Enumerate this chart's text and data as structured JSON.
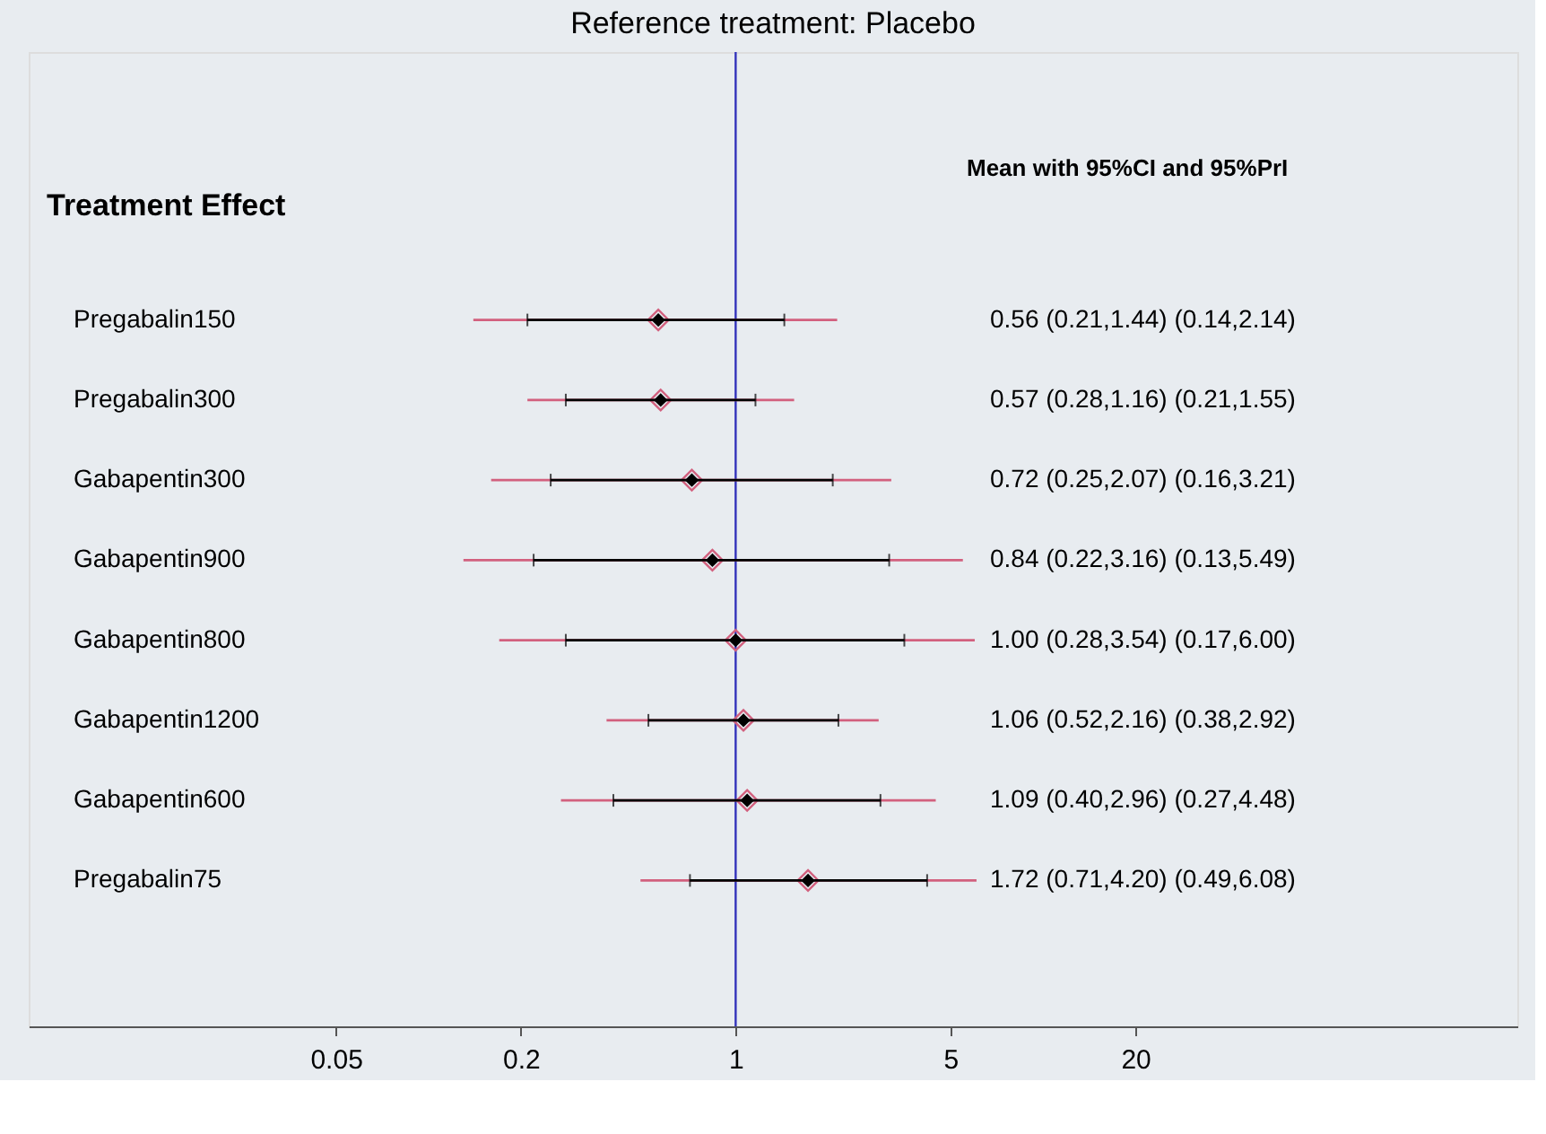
{
  "chart_data": {
    "type": "scatter",
    "orientation": "horizontal",
    "title": "Reference treatment: Placebo",
    "ylabel": "Treatment Effect",
    "annotations": [
      "Mean with 95%CI and 95%PrI",
      "0.56 (0.21,1.44)  (0.14,2.14)",
      "0.57 (0.28,1.16)  (0.21,1.55)",
      "0.72 (0.25,2.07)  (0.16,3.21)",
      "0.84 (0.22,3.16)  (0.13,5.49)",
      "1.00 (0.28,3.54)  (0.17,6.00)",
      "1.06 (0.52,2.16)  (0.38,2.92)",
      "1.09 (0.40,2.96)  (0.27,4.48)",
      "1.72 (0.71,4.20)  (0.49,6.08)"
    ],
    "categories": [
      "Pregabalin150",
      "Pregabalin300",
      "Gabapentin300",
      "Gabapentin900",
      "Gabapentin800",
      "Gabapentin1200",
      "Gabapentin600",
      "Pregabalin75"
    ],
    "series": [
      {
        "color": "#d2607e",
        "marker": "diamond",
        "values": [
          0.56,
          0.57,
          0.72,
          0.84,
          1.0,
          1.06,
          1.09,
          1.72
        ],
        "errors": [
          [
            0.14,
            2.14
          ],
          [
            0.21,
            1.55
          ],
          [
            0.16,
            3.21
          ],
          [
            0.13,
            5.49
          ],
          [
            0.17,
            6.0
          ],
          [
            0.38,
            2.92
          ],
          [
            0.27,
            4.48
          ],
          [
            0.49,
            6.08
          ]
        ]
      },
      {
        "color": "#000000",
        "marker": "diamond",
        "values": [
          0.56,
          0.57,
          0.72,
          0.84,
          1.0,
          1.06,
          1.09,
          1.72
        ],
        "errors": [
          [
            0.21,
            1.44
          ],
          [
            0.28,
            1.16
          ],
          [
            0.25,
            2.07
          ],
          [
            0.22,
            3.16
          ],
          [
            0.28,
            3.54
          ],
          [
            0.52,
            2.16
          ],
          [
            0.4,
            2.96
          ],
          [
            0.71,
            4.2
          ]
        ]
      }
    ],
    "xlim": [
      0.005,
      350
    ],
    "xticks": [
      0.05,
      0.2,
      1,
      5,
      20
    ],
    "log": "x",
    "grid": false,
    "ref_lines": [
      {
        "axis": "x",
        "value": 1,
        "color": "#3333bb"
      }
    ]
  }
}
